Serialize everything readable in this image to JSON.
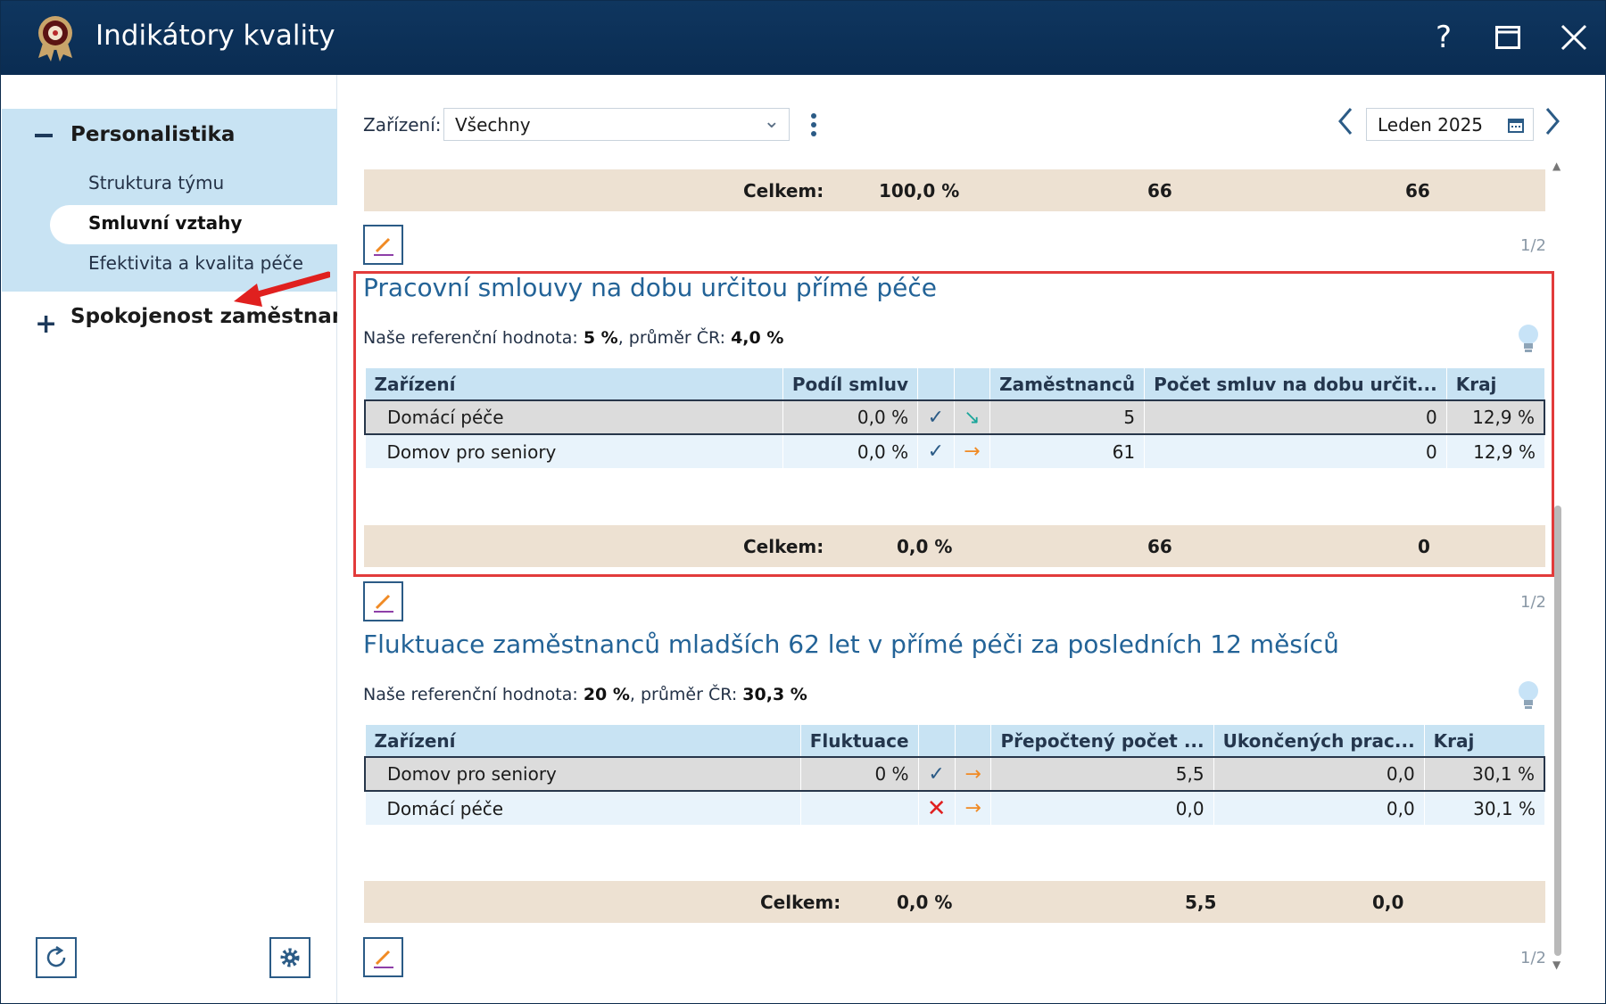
{
  "window": {
    "title": "Indikátory kvality",
    "help": "?",
    "maximize_icon": "maximize-icon",
    "close_icon": "close-icon"
  },
  "sidebar": {
    "section1": "Personalistika",
    "items": [
      "Struktura týmu",
      "Smluvní vztahy",
      "Efektivita a kvalita péče"
    ],
    "active_item": "Smluvní vztahy",
    "section2": "Spokojenost zaměstnanců"
  },
  "filter": {
    "label": "Zařízení:",
    "value": "Všechny",
    "date": "Leden 2025"
  },
  "top_summary": {
    "label": "Celkem:",
    "share": "100,0 %",
    "employees": "66",
    "count": "66"
  },
  "page_indicator": "1/2",
  "section1": {
    "title": "Pracovní smlouvy na dobu určitou přímé péče",
    "ref_label": "Naše referenční hodnota:",
    "ref_value": "5 %",
    "avg_label": ", průměr ČR:",
    "avg_value": "4,0 %",
    "columns": [
      "Zařízení",
      "Podíl smluv",
      "",
      "",
      "Zaměstnanců",
      "Počet smluv na dobu určit...",
      "Kraj"
    ],
    "rows": [
      {
        "name": "Domácí péče",
        "share": "0,0 %",
        "employees": "5",
        "count": "0",
        "region": "12,9 %"
      },
      {
        "name": "Domov pro seniory",
        "share": "0,0 %",
        "employees": "61",
        "count": "0",
        "region": "12,9 %"
      }
    ],
    "total_label": "Celkem:",
    "total_share": "0,0 %",
    "total_employees": "66",
    "total_count": "0"
  },
  "section2": {
    "title": "Fluktuace zaměstnanců mladších 62 let v přímé péči za posledních 12 měsíců",
    "ref_label": "Naše referenční hodnota:",
    "ref_value": "20 %",
    "avg_label": ", průměr ČR:",
    "avg_value": "30,3 %",
    "columns": [
      "Zařízení",
      "Fluktuace",
      "",
      "",
      "Přepočtený počet ...",
      "Ukončených prac...",
      "Kraj"
    ],
    "rows": [
      {
        "name": "Domov pro seniory",
        "fluct": "0 %",
        "recalc": "5,5",
        "ended": "0,0",
        "region": "30,1 %"
      },
      {
        "name": "Domácí péče",
        "fluct": "",
        "recalc": "0,0",
        "ended": "0,0",
        "region": "30,1 %"
      }
    ],
    "total_label": "Celkem:",
    "total_fluct": "0,0 %",
    "total_recalc": "5,5",
    "total_ended": "0,0"
  },
  "colors": {
    "accent": "#236397",
    "titlebar": "#0f365f",
    "highlight": "#e23b3b",
    "header_bg": "#c8e3f3",
    "total_bg": "#ede1d2"
  }
}
